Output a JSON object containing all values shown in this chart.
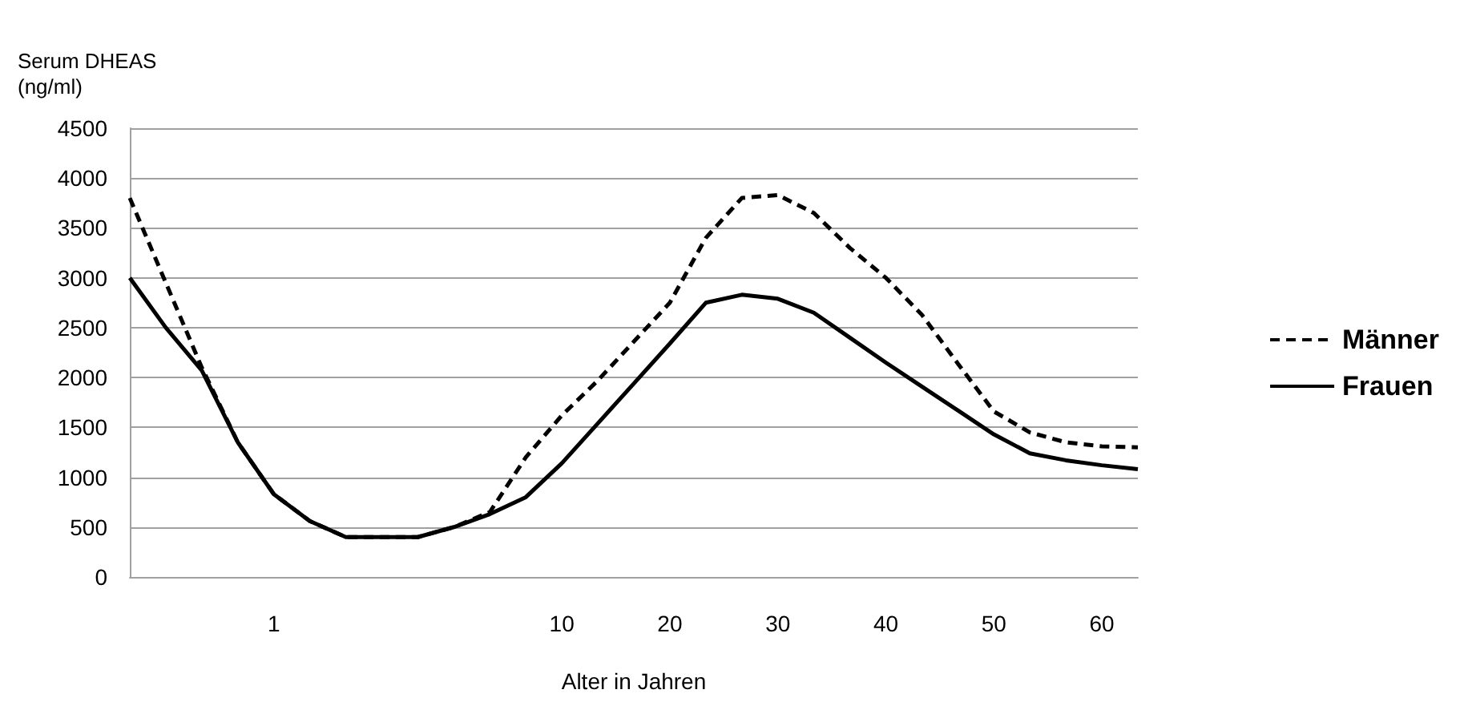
{
  "chart_data": {
    "type": "line",
    "ylabel": "Serum DHEAS\n(ng/ml)",
    "xlabel": "Alter in Jahren",
    "categories": [
      null,
      null,
      null,
      null,
      "1",
      null,
      null,
      null,
      null,
      null,
      null,
      null,
      "10",
      null,
      null,
      "20",
      null,
      null,
      "30",
      null,
      null,
      "40",
      null,
      null,
      "50",
      null,
      null,
      "60",
      null
    ],
    "series": [
      {
        "name": "Männer",
        "color": "#000000",
        "line_style": "dashed",
        "values": [
          3800,
          2950,
          2100,
          1350,
          830,
          560,
          400,
          400,
          400,
          500,
          650,
          1200,
          1620,
          1970,
          2360,
          2750,
          3400,
          3800,
          3830,
          3650,
          3300,
          3000,
          2630,
          2140,
          1660,
          1450,
          1350,
          1310,
          1300
        ]
      },
      {
        "name": "Frauen",
        "color": "#000000",
        "line_style": "solid",
        "values": [
          3000,
          2500,
          2070,
          1350,
          830,
          560,
          400,
          400,
          400,
          500,
          630,
          800,
          1140,
          1540,
          1940,
          2340,
          2750,
          2830,
          2790,
          2650,
          2400,
          2150,
          1910,
          1670,
          1430,
          1240,
          1170,
          1120,
          1080
        ]
      }
    ],
    "ylim": [
      0,
      4500
    ],
    "yticks": [
      0,
      500,
      1000,
      1500,
      2000,
      2500,
      3000,
      3500,
      4000,
      4500
    ],
    "grid": "y",
    "legend": "right",
    "marker": "none"
  }
}
